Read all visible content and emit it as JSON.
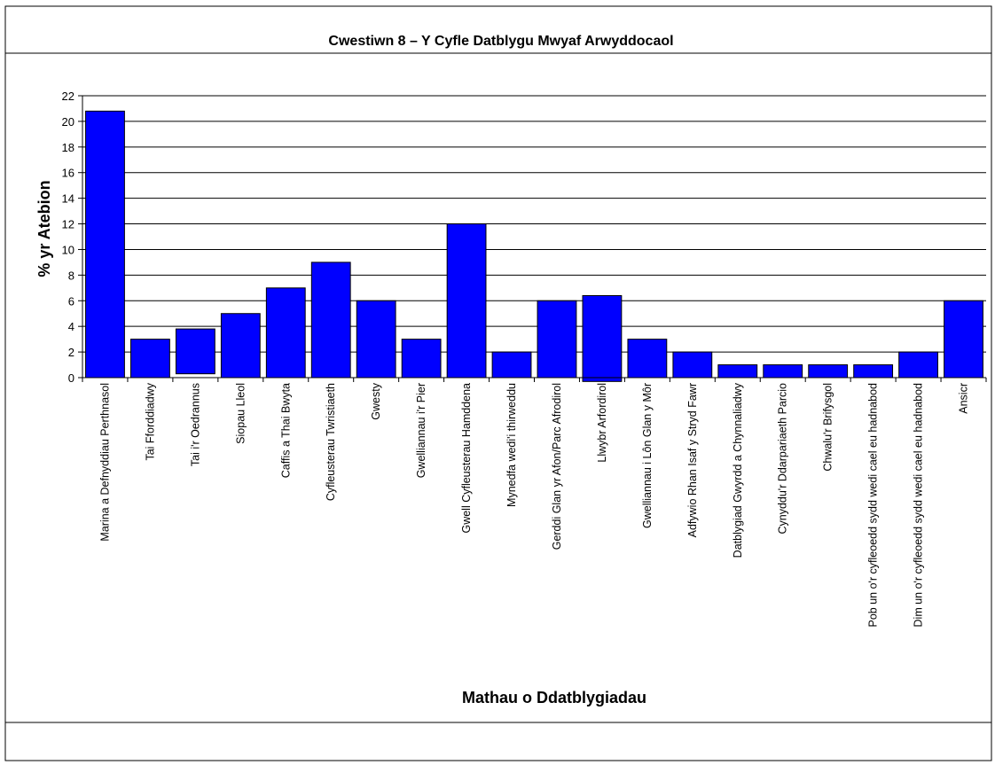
{
  "chart_data": {
    "type": "bar",
    "title": "Cwestiwn 8 – Y Cyfle Datblygu Mwyaf Arwyddocaol",
    "xlabel": "Mathau o Ddatblygiadau",
    "ylabel": "% yr Atebion",
    "ylim": [
      0,
      22
    ],
    "yticks": [
      0,
      2,
      4,
      6,
      8,
      10,
      12,
      14,
      16,
      18,
      20,
      22
    ],
    "grid": true,
    "legend": "none",
    "bar_color": "#0000ff",
    "categories": [
      "Marina a Defnyddiau Perthnasol",
      "Tai Fforddiadwy",
      "Tai i'r Oedrannus",
      "Siopau Lleol",
      "Caffis a Thai Bwyta",
      "Cyfleusterau Twristiaeth",
      "Gwesty",
      "Gwelliannau i'r Pier",
      "Gwell Cyfleusterau Hamddena",
      "Mynedfa wedi'i thirweddu",
      "Gerddi Glan yr Afon/Parc Afrodirol",
      "Llwybr Arfordirol",
      "Gwelliannau i Lôn Glan y Môr",
      "Adfywio Rhan Isaf y Stryd Fawr",
      "Datblygiad Gwyrdd a Chynnaliadwy",
      "Cynyddu'r Ddarpariaeth Parcio",
      "Chwalu'r Brifysgol",
      "Pob un o'r cyfleoedd sydd wedi cael eu hadnabod",
      "Dim un o'r cyfleoedd sydd wedi cael eu hadnabod",
      "Ansicr"
    ],
    "bars": [
      {
        "base": 0,
        "value": 20.8
      },
      {
        "base": 0,
        "value": 3
      },
      {
        "base": 0.3,
        "value": 3.5
      },
      {
        "base": 0,
        "value": 5
      },
      {
        "base": 0,
        "value": 7
      },
      {
        "base": 0,
        "value": 9
      },
      {
        "base": 0,
        "value": 6
      },
      {
        "base": 0,
        "value": 3
      },
      {
        "base": 0,
        "value": 12
      },
      {
        "base": 0,
        "value": 2
      },
      {
        "base": 0,
        "value": 6
      },
      {
        "base": -0.3,
        "value": 6.7
      },
      {
        "base": 0,
        "value": 3
      },
      {
        "base": 0,
        "value": 2
      },
      {
        "base": 0,
        "value": 1
      },
      {
        "base": 0,
        "value": 1
      },
      {
        "base": 0,
        "value": 1
      },
      {
        "base": 0,
        "value": 1
      },
      {
        "base": 0,
        "value": 2
      },
      {
        "base": 0,
        "value": 6
      }
    ]
  }
}
